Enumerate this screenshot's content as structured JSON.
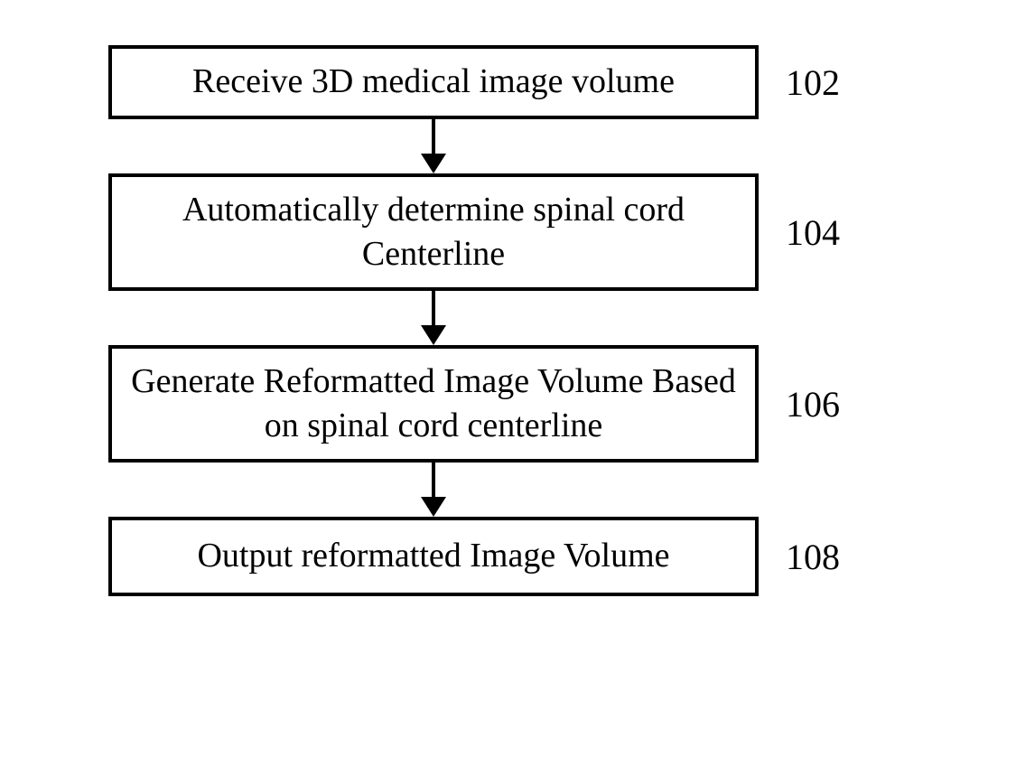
{
  "flowchart": {
    "type": "flowchart",
    "background_color": "#ffffff",
    "border_color": "#000000",
    "border_width": 4,
    "font_family": "Times New Roman",
    "text_color": "#000000",
    "box_font_size": 38,
    "label_font_size": 40,
    "arrow_color": "#000000",
    "steps": [
      {
        "id": "102",
        "text": "Receive 3D medical image volume",
        "label": "102"
      },
      {
        "id": "104",
        "text": "Automatically determine spinal cord Centerline",
        "label": "104"
      },
      {
        "id": "106",
        "text": "Generate Reformatted Image Volume Based on spinal cord centerline",
        "label": "106"
      },
      {
        "id": "108",
        "text": "Output reformatted Image Volume",
        "label": "108"
      }
    ]
  }
}
